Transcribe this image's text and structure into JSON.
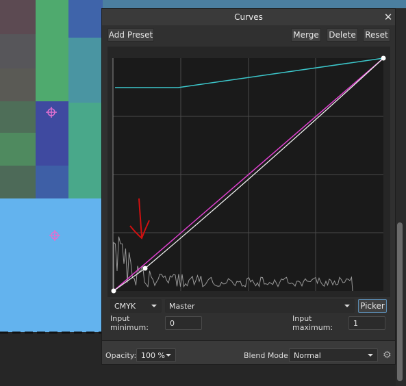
{
  "dialog": {
    "title": "Curves",
    "toolbar": {
      "add_preset": "Add Preset",
      "merge": "Merge",
      "delete": "Delete",
      "reset": "Reset"
    },
    "channel_controls": {
      "color_space": "CMYK",
      "channel": "Master",
      "picker": "Picker"
    },
    "inputs": {
      "min_label": "Input minimum:",
      "min_value": "0",
      "max_label": "Input maximum:",
      "max_value": "1"
    },
    "footer": {
      "opacity_label": "Opacity:",
      "opacity_value": "100 %",
      "blend_label": "Blend Mode:",
      "blend_value": "Normal"
    }
  }
}
